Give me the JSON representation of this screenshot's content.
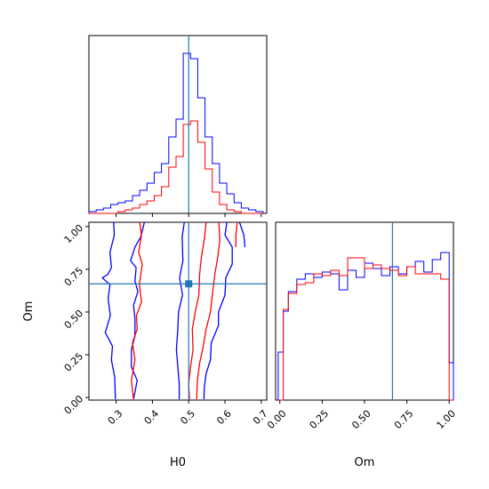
{
  "chart_data": {
    "type": "corner",
    "parameters": [
      "H0",
      "Om"
    ],
    "truth": {
      "H0": 0.5,
      "Om": 0.665
    },
    "colors": {
      "blue": "#0000ff",
      "red": "#ff0000",
      "truth": "#1f77b4",
      "frame": "#000000"
    },
    "axes": {
      "h0_hist": {
        "xlim": [
          0.225,
          0.715
        ],
        "ylim": [
          0,
          1.0
        ],
        "ticks": [
          0.3,
          0.4,
          0.5,
          0.6,
          0.7
        ]
      },
      "scatter": {
        "xlim": [
          0.225,
          0.715
        ],
        "ylim": [
          -0.015,
          1.025
        ],
        "xlabel": "H0",
        "ylabel": "Om",
        "xticks": [
          "0.3",
          "0.4",
          "0.5",
          "0.6",
          "0.7"
        ],
        "yticks": [
          "0.00",
          "0.25",
          "0.50",
          "0.75",
          "1.00"
        ]
      },
      "om_hist": {
        "xlim": [
          -0.025,
          1.025
        ],
        "ylim": [
          0,
          1.0
        ],
        "xlabel": "Om",
        "xticks": [
          "0.00",
          "0.25",
          "0.50",
          "0.75",
          "1.00"
        ]
      }
    },
    "series": [
      {
        "color": "blue",
        "h0_hist": {
          "edges": [
            0.225,
            0.245,
            0.265,
            0.285,
            0.305,
            0.325,
            0.345,
            0.365,
            0.385,
            0.405,
            0.425,
            0.445,
            0.465,
            0.485,
            0.505,
            0.525,
            0.545,
            0.565,
            0.585,
            0.605,
            0.625,
            0.645,
            0.665,
            0.685,
            0.705
          ],
          "heights": [
            0.01,
            0.02,
            0.03,
            0.05,
            0.06,
            0.07,
            0.1,
            0.13,
            0.17,
            0.23,
            0.28,
            0.43,
            0.53,
            0.9,
            0.87,
            0.65,
            0.43,
            0.28,
            0.17,
            0.11,
            0.06,
            0.03,
            0.02,
            0.01
          ]
        },
        "om_hist": {
          "edges": [
            -0.01,
            0.02,
            0.05,
            0.1,
            0.15,
            0.2,
            0.25,
            0.3,
            0.35,
            0.4,
            0.45,
            0.5,
            0.55,
            0.6,
            0.65,
            0.7,
            0.75,
            0.8,
            0.85,
            0.9,
            0.95,
            1.0,
            1.025
          ],
          "heights": [
            0.27,
            0.5,
            0.61,
            0.68,
            0.71,
            0.69,
            0.72,
            0.71,
            0.62,
            0.73,
            0.69,
            0.77,
            0.74,
            0.7,
            0.75,
            0.71,
            0.75,
            0.78,
            0.72,
            0.79,
            0.83,
            0.21
          ]
        },
        "contours": [
          [
            [
              0.293,
              1.03
            ],
            [
              0.295,
              0.95
            ],
            [
              0.283,
              0.85
            ],
            [
              0.287,
              0.76
            ],
            [
              0.277,
              0.72
            ],
            [
              0.262,
              0.7
            ],
            [
              0.283,
              0.66
            ],
            [
              0.278,
              0.58
            ],
            [
              0.284,
              0.48
            ],
            [
              0.27,
              0.38
            ],
            [
              0.29,
              0.3
            ],
            [
              0.287,
              0.22
            ],
            [
              0.296,
              0.12
            ],
            [
              0.298,
              -0.01
            ]
          ],
          [
            [
              0.378,
              1.03
            ],
            [
              0.368,
              0.94
            ],
            [
              0.352,
              0.88
            ],
            [
              0.34,
              0.8
            ],
            [
              0.355,
              0.76
            ],
            [
              0.352,
              0.68
            ],
            [
              0.36,
              0.62
            ],
            [
              0.348,
              0.54
            ],
            [
              0.352,
              0.46
            ],
            [
              0.352,
              0.36
            ],
            [
              0.342,
              0.28
            ],
            [
              0.342,
              0.18
            ],
            [
              0.358,
              0.1
            ],
            [
              0.348,
              -0.01
            ]
          ],
          [
            [
              0.488,
              1.03
            ],
            [
              0.482,
              0.94
            ],
            [
              0.484,
              0.8
            ],
            [
              0.475,
              0.7
            ],
            [
              0.483,
              0.6
            ],
            [
              0.472,
              0.5
            ],
            [
              0.47,
              0.4
            ],
            [
              0.466,
              0.28
            ],
            [
              0.47,
              0.18
            ],
            [
              0.474,
              0.08
            ],
            [
              0.474,
              -0.01
            ]
          ],
          [
            [
              0.605,
              1.03
            ],
            [
              0.6,
              0.95
            ],
            [
              0.62,
              0.88
            ],
            [
              0.62,
              0.78
            ],
            [
              0.602,
              0.7
            ],
            [
              0.6,
              0.6
            ],
            [
              0.582,
              0.5
            ],
            [
              0.582,
              0.42
            ],
            [
              0.562,
              0.32
            ],
            [
              0.56,
              0.22
            ],
            [
              0.548,
              0.14
            ],
            [
              0.543,
              0.06
            ],
            [
              0.542,
              -0.01
            ]
          ],
          [
            [
              0.64,
              1.03
            ],
            [
              0.652,
              0.95
            ],
            [
              0.655,
              0.88
            ]
          ]
        ]
      },
      {
        "color": "red",
        "h0_hist": {
          "edges": [
            0.225,
            0.245,
            0.265,
            0.285,
            0.305,
            0.325,
            0.345,
            0.365,
            0.385,
            0.405,
            0.425,
            0.445,
            0.465,
            0.485,
            0.505,
            0.525,
            0.545,
            0.565,
            0.585,
            0.605,
            0.625,
            0.645,
            0.665,
            0.685,
            0.705
          ],
          "heights": [
            0,
            0,
            0,
            0,
            0.01,
            0.02,
            0.03,
            0.05,
            0.07,
            0.1,
            0.15,
            0.26,
            0.32,
            0.5,
            0.52,
            0.4,
            0.25,
            0.12,
            0.05,
            0.02,
            0.01,
            0,
            0,
            0
          ]
        },
        "om_hist": {
          "edges": [
            -0.01,
            0.02,
            0.05,
            0.1,
            0.15,
            0.2,
            0.25,
            0.3,
            0.35,
            0.4,
            0.45,
            0.5,
            0.55,
            0.6,
            0.65,
            0.7,
            0.75,
            0.8,
            0.85,
            0.9,
            0.95,
            1.0,
            1.025
          ],
          "heights": [
            0.0,
            0.51,
            0.6,
            0.65,
            0.66,
            0.71,
            0.7,
            0.73,
            0.7,
            0.8,
            0.8,
            0.74,
            0.76,
            0.74,
            0.73,
            0.7,
            0.75,
            0.71,
            0.71,
            0.71,
            0.68,
            0.0
          ]
        },
        "contours": [
          [
            [
              0.365,
              1.03
            ],
            [
              0.37,
              0.95
            ],
            [
              0.362,
              0.85
            ],
            [
              0.372,
              0.78
            ],
            [
              0.364,
              0.66
            ],
            [
              0.37,
              0.56
            ],
            [
              0.356,
              0.48
            ],
            [
              0.358,
              0.4
            ],
            [
              0.345,
              0.32
            ],
            [
              0.352,
              0.22
            ],
            [
              0.342,
              0.1
            ],
            [
              0.348,
              -0.01
            ]
          ],
          [
            [
              0.548,
              1.03
            ],
            [
              0.544,
              0.94
            ],
            [
              0.535,
              0.82
            ],
            [
              0.53,
              0.72
            ],
            [
              0.528,
              0.6
            ],
            [
              0.518,
              0.5
            ],
            [
              0.51,
              0.4
            ],
            [
              0.512,
              0.28
            ],
            [
              0.505,
              0.18
            ],
            [
              0.5,
              0.08
            ],
            [
              0.502,
              -0.01
            ]
          ],
          [
            [
              0.583,
              1.03
            ],
            [
              0.586,
              0.92
            ],
            [
              0.58,
              0.82
            ],
            [
              0.572,
              0.72
            ],
            [
              0.565,
              0.6
            ],
            [
              0.56,
              0.5
            ],
            [
              0.548,
              0.4
            ],
            [
              0.54,
              0.3
            ],
            [
              0.53,
              0.2
            ],
            [
              0.524,
              0.1
            ],
            [
              0.522,
              -0.01
            ]
          ],
          [
            [
              0.634,
              1.03
            ],
            [
              0.63,
              0.95
            ],
            [
              0.63,
              0.88
            ]
          ]
        ]
      }
    ]
  }
}
